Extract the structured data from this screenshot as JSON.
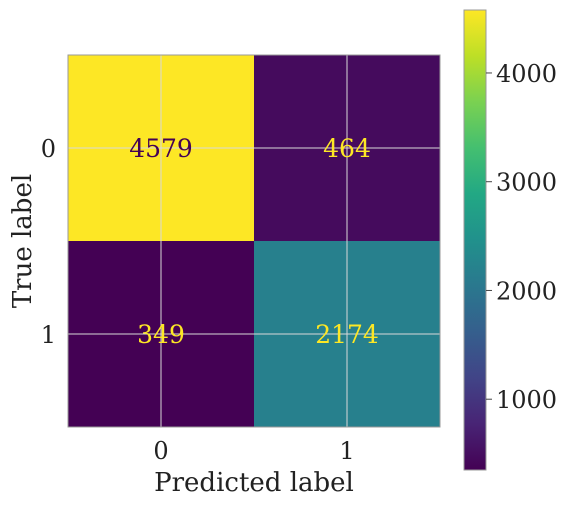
{
  "chart_data": {
    "type": "heatmap",
    "xlabel": "Predicted label",
    "ylabel": "True label",
    "x_tick_labels": [
      "0",
      "1"
    ],
    "y_tick_labels": [
      "0",
      "1"
    ],
    "matrix": [
      [
        4579,
        464
      ],
      [
        349,
        2174
      ]
    ],
    "colormap": "viridis",
    "colorbar": {
      "range": [
        349,
        4579
      ],
      "ticks": [
        "1000",
        "2000",
        "3000",
        "4000"
      ]
    },
    "grid": true,
    "colors": {
      "annotation_on_dark": "#fde725",
      "annotation_on_light": "#440154",
      "axis_frame": "#999999",
      "grid": "#d9d9d9"
    }
  }
}
